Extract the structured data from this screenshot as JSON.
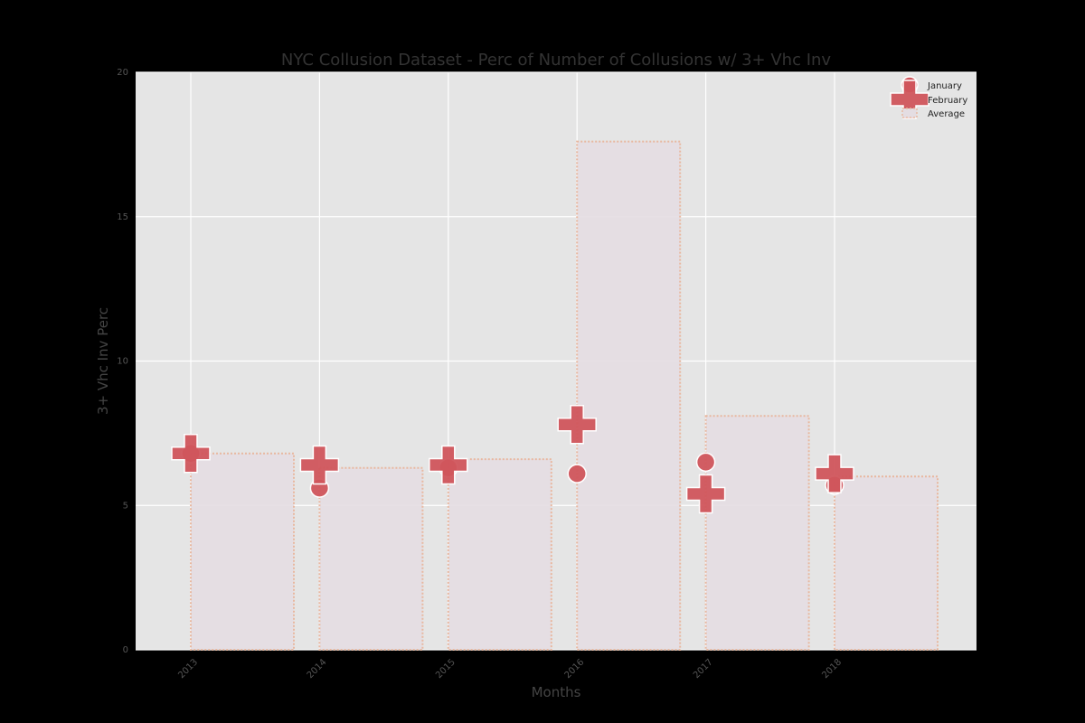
{
  "chart_data": {
    "type": "bar",
    "title": "NYC Collusion Dataset - Perc of Number of Collusions w/ 3+ Vhc Inv",
    "xlabel": "Months",
    "ylabel": "3+ Vhc Inv Perc",
    "categories": [
      "2013",
      "2014",
      "2015",
      "2016",
      "2017",
      "2018"
    ],
    "ylim": [
      0,
      20
    ],
    "yticks": [
      0,
      5,
      10,
      15,
      20
    ],
    "grid": true,
    "legend_position": "top-right",
    "series": [
      {
        "name": "January",
        "kind": "scatter-circle",
        "values": [
          6.8,
          5.6,
          6.3,
          6.1,
          6.5,
          5.7
        ]
      },
      {
        "name": "February",
        "kind": "scatter-plus",
        "values": [
          6.8,
          6.4,
          6.4,
          7.8,
          5.4,
          6.1
        ]
      },
      {
        "name": "Average",
        "kind": "bar",
        "values": [
          6.8,
          6.3,
          6.6,
          17.6,
          8.1,
          6.0
        ]
      }
    ],
    "colors": {
      "marker": "#d0555c",
      "bar_fill": "#e4dde2",
      "bar_edge": "#e8b8a0",
      "plot_bg": "#e5e5e5",
      "grid": "#ffffff"
    }
  }
}
